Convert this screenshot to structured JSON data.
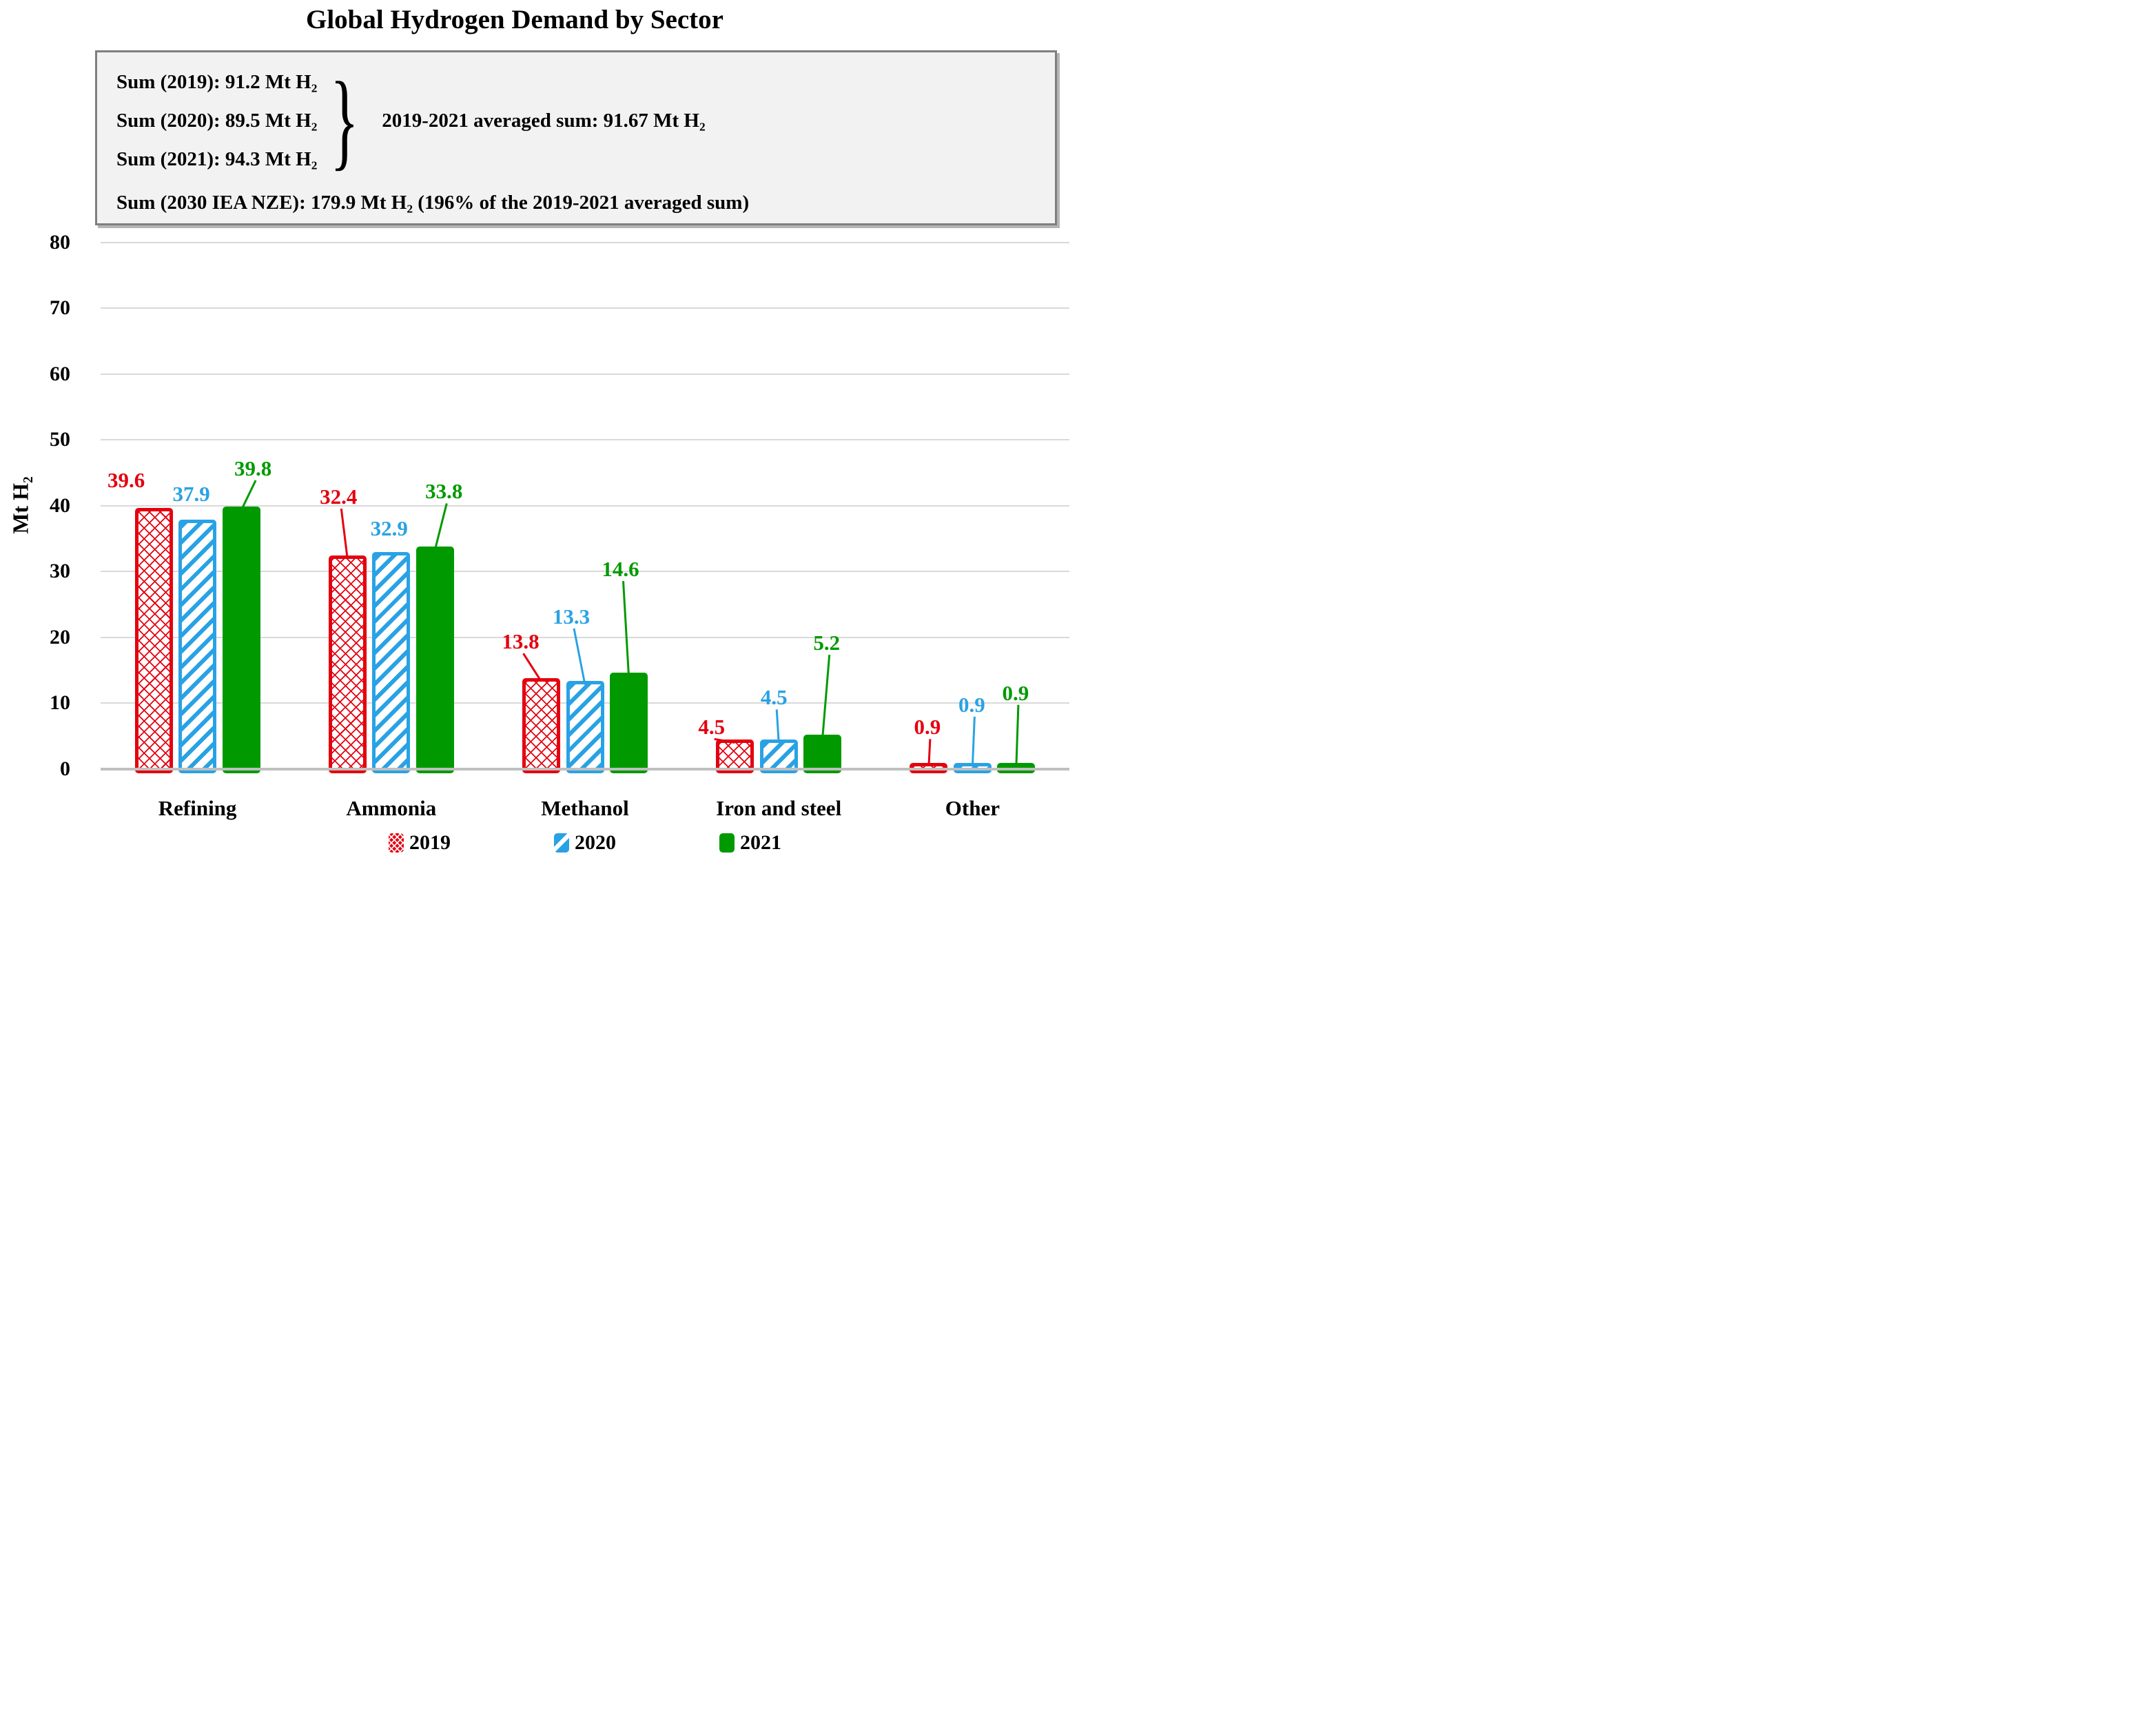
{
  "title": "Global Hydrogen Demand by Sector",
  "note_box": {
    "sum_lines": [
      "Sum (2019): 91.2 Mt H₂",
      "Sum (2020): 89.5 Mt H₂",
      "Sum (2021): 94.3 Mt H₂"
    ],
    "brace_icon": "}",
    "brace_note": "2019-2021 averaged sum: 91.67 Mt H₂",
    "nze_line": "Sum (2030 IEA NZE): 179.9 Mt H₂ (196% of the 2019-2021 averaged sum)"
  },
  "chart_data": {
    "type": "bar",
    "title": "Global Hydrogen Demand by Sector",
    "xlabel": "",
    "ylabel": "Mt H₂",
    "ylim": [
      0,
      80
    ],
    "ytick_step": 10,
    "grid": true,
    "legend_position": "bottom",
    "categories": [
      "Refining",
      "Ammonia",
      "Methanol",
      "Iron and steel",
      "Other"
    ],
    "series": [
      {
        "name": "2019",
        "color": "#E4000F",
        "pattern": "crosshatch",
        "values": [
          39.6,
          32.4,
          13.8,
          4.5,
          0.9
        ],
        "label_mt": [
          43.8,
          41.3,
          19.3,
          6.3,
          6.3
        ],
        "label_dx": [
          -40,
          -13,
          -30,
          -34,
          -2
        ],
        "leader": [
          false,
          true,
          true,
          true,
          true
        ]
      },
      {
        "name": "2020",
        "color": "#29A2E5",
        "pattern": "diagonal",
        "values": [
          37.9,
          32.9,
          13.3,
          4.5,
          0.9
        ],
        "label_mt": [
          41.7,
          36.5,
          23.1,
          10.8,
          9.7
        ],
        "label_dx": [
          -9,
          -3,
          -20,
          -7,
          -1
        ],
        "leader": [
          false,
          false,
          true,
          true,
          true
        ]
      },
      {
        "name": "2021",
        "color": "#009A00",
        "pattern": "solid",
        "values": [
          39.8,
          33.8,
          14.6,
          5.2,
          0.9
        ],
        "label_mt": [
          45.6,
          42.1,
          30.3,
          19.1,
          11.5
        ],
        "label_dx": [
          17,
          13,
          -12,
          6,
          -1
        ],
        "leader": [
          true,
          true,
          true,
          true,
          true
        ]
      }
    ]
  }
}
